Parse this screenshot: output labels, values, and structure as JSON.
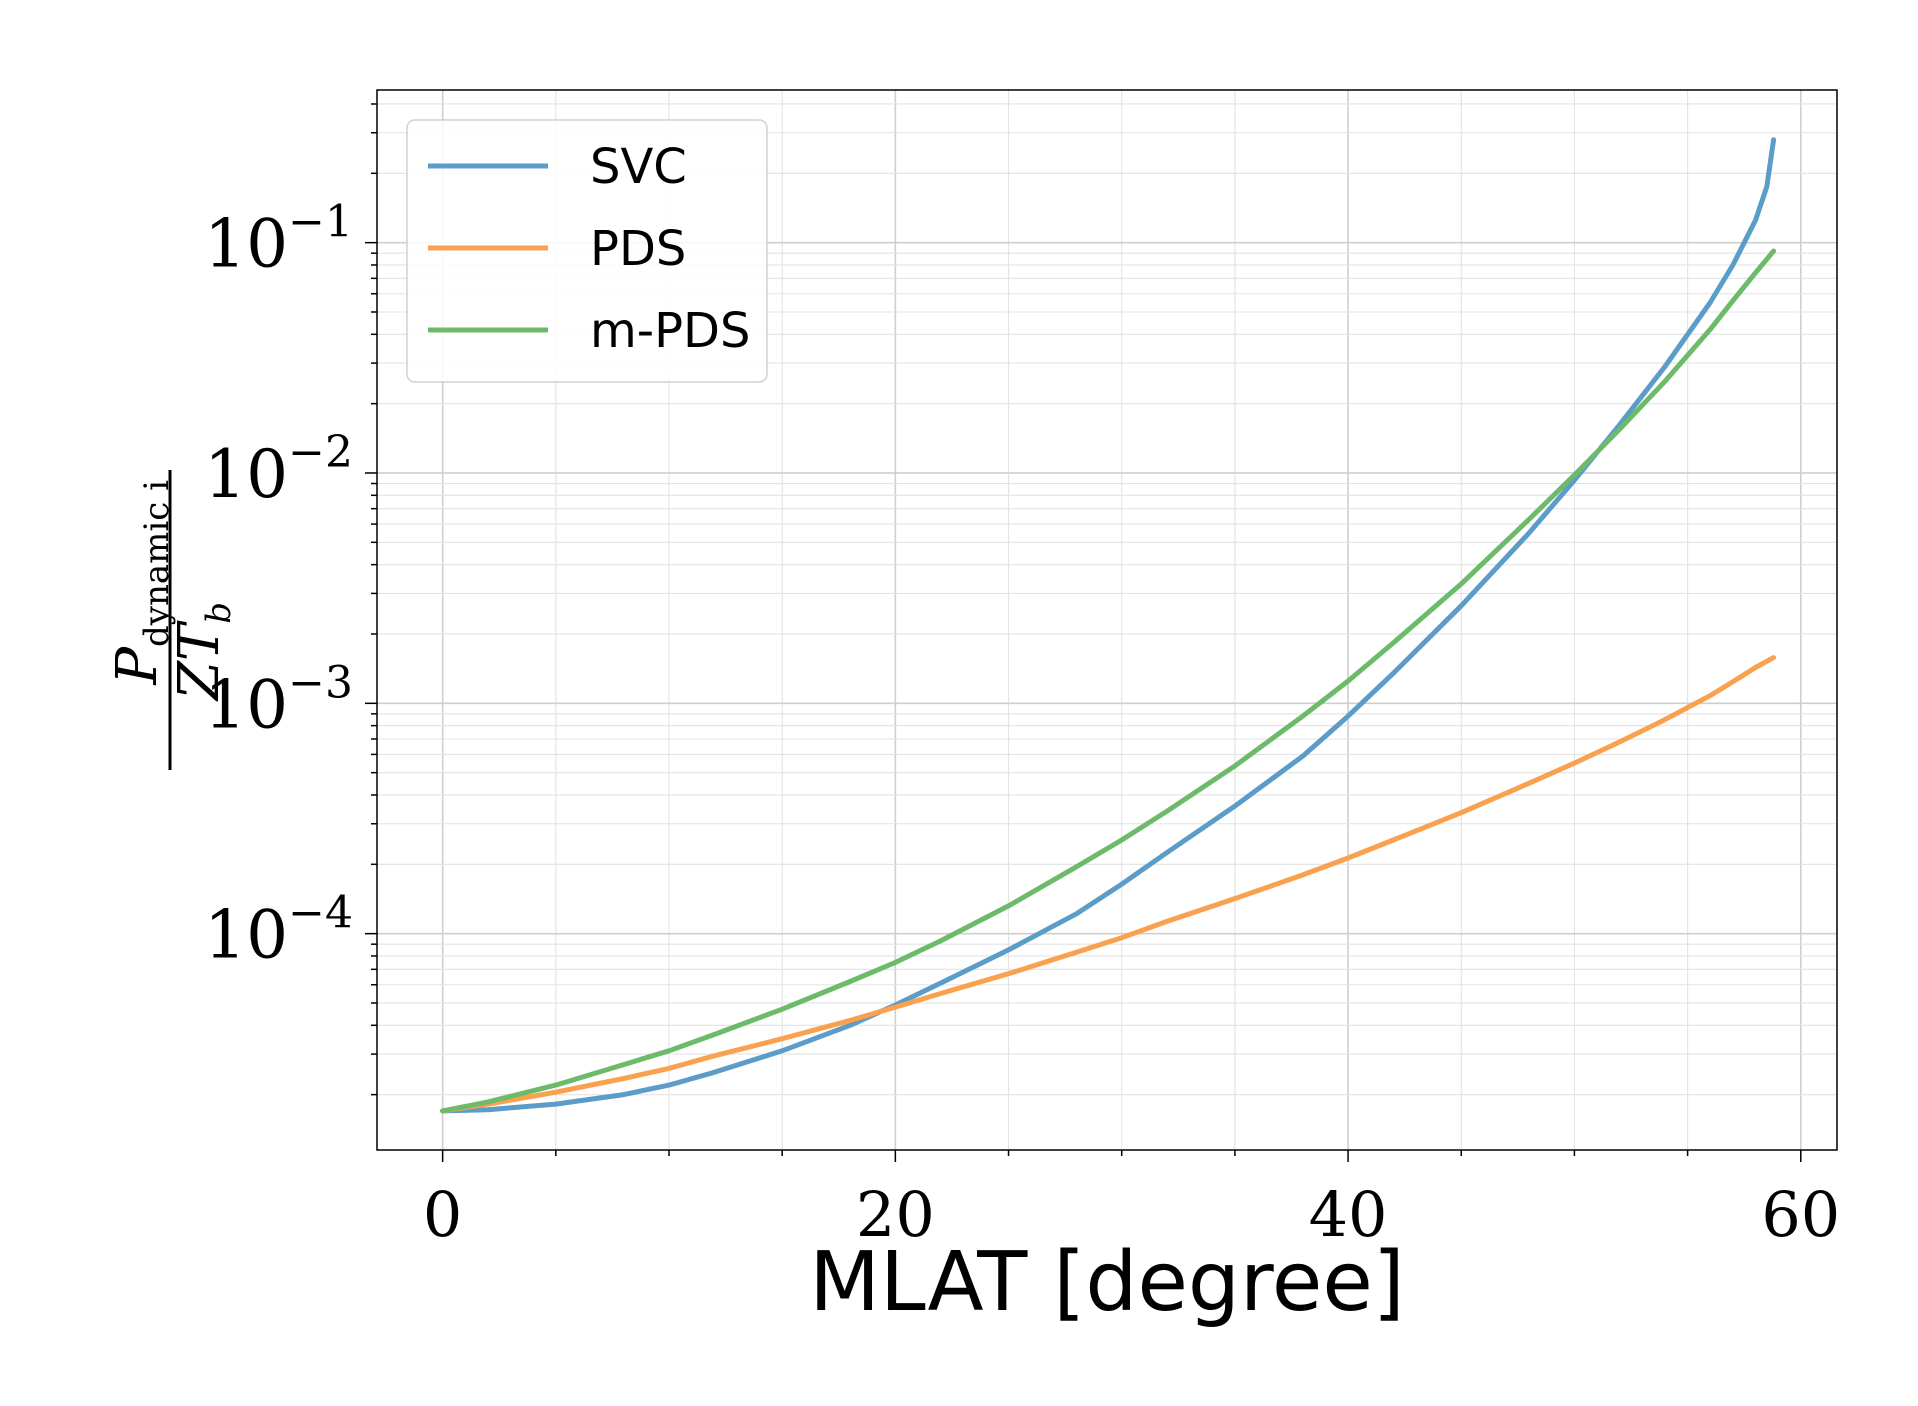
{
  "chart_data": {
    "type": "line",
    "xlabel": "MLAT [degree]",
    "ylabel": "P_dynamic i / Z T_b",
    "ylabel_parts": {
      "p": "P",
      "sub": "dynamic i",
      "den": "ZT",
      "den_sub": "b"
    },
    "yscale": "log",
    "xlim": [
      -2.9,
      61.6
    ],
    "ylim": [
      1.15e-05,
      0.46
    ],
    "x_ticks": [
      0,
      20,
      40,
      60
    ],
    "y_ticks": [
      0.0001,
      0.001,
      0.01,
      0.1
    ],
    "y_tick_labels": [
      {
        "base": "10",
        "exp": "−4"
      },
      {
        "base": "10",
        "exp": "−3"
      },
      {
        "base": "10",
        "exp": "−2"
      },
      {
        "base": "10",
        "exp": "−1"
      }
    ],
    "grid": true,
    "legend": "top-left",
    "series": [
      {
        "name": "SVC",
        "color": "#5b9cc9",
        "x": [
          0,
          2,
          5,
          8,
          10,
          12,
          15,
          18,
          20,
          22,
          25,
          28,
          30,
          32,
          35,
          38,
          40,
          42,
          45,
          48,
          50,
          52,
          54,
          56,
          57,
          58,
          58.5,
          58.8
        ],
        "y": [
          1.7e-05,
          1.72e-05,
          1.82e-05,
          2e-05,
          2.2e-05,
          2.5e-05,
          3.1e-05,
          4e-05,
          4.9e-05,
          6.1e-05,
          8.5e-05,
          0.000122,
          0.000164,
          0.000225,
          0.000358,
          0.00059,
          0.00088,
          0.00135,
          0.00265,
          0.0055,
          0.0093,
          0.0162,
          0.029,
          0.055,
          0.08,
          0.125,
          0.175,
          0.28
        ]
      },
      {
        "name": "PDS",
        "color": "#f9a14f",
        "x": [
          0,
          2,
          5,
          8,
          10,
          12,
          15,
          18,
          20,
          22,
          25,
          28,
          30,
          32,
          35,
          38,
          40,
          42,
          45,
          48,
          50,
          52,
          54,
          56,
          57,
          58,
          58.8
        ],
        "y": [
          1.7e-05,
          1.82e-05,
          2.05e-05,
          2.35e-05,
          2.6e-05,
          2.95e-05,
          3.5e-05,
          4.2e-05,
          4.8e-05,
          5.5e-05,
          6.7e-05,
          8.3e-05,
          9.6e-05,
          0.000113,
          0.000142,
          0.00018,
          0.000213,
          0.000255,
          0.000335,
          0.00045,
          0.00055,
          0.00068,
          0.00085,
          0.00108,
          0.00124,
          0.00143,
          0.00158
        ]
      },
      {
        "name": "m-PDS",
        "color": "#6dbb6a",
        "x": [
          0,
          2,
          5,
          8,
          10,
          12,
          15,
          18,
          20,
          22,
          25,
          28,
          30,
          32,
          35,
          38,
          40,
          42,
          45,
          48,
          50,
          52,
          54,
          56,
          57,
          58,
          58.8
        ],
        "y": [
          1.7e-05,
          1.86e-05,
          2.2e-05,
          2.7e-05,
          3.1e-05,
          3.65e-05,
          4.7e-05,
          6.2e-05,
          7.5e-05,
          9.3e-05,
          0.000132,
          0.000195,
          0.000255,
          0.00034,
          0.000535,
          0.00088,
          0.00125,
          0.00183,
          0.0033,
          0.0063,
          0.0098,
          0.0155,
          0.025,
          0.042,
          0.056,
          0.074,
          0.092
        ]
      }
    ]
  }
}
